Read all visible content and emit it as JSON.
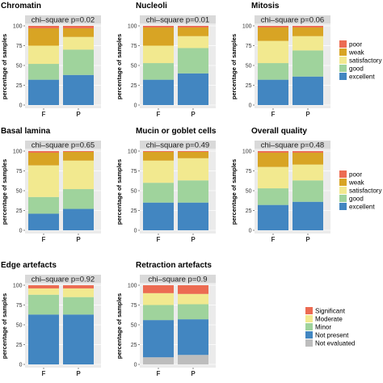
{
  "colors": {
    "poor": "#ec6b52",
    "weak": "#d8a424",
    "satisfactory": "#f2e98f",
    "good": "#9fd39c",
    "excellent": "#4286c1",
    "significant": "#ec6b52",
    "moderate": "#f2e98f",
    "minor": "#9fd39c",
    "not_present": "#4286c1",
    "not_evaluated": "#bdbdbd",
    "panel_bg": "#ebebeb",
    "strip_bg": "#d9d9d9"
  },
  "legends": [
    {
      "entries": [
        {
          "label": "poor",
          "color_key": "poor"
        },
        {
          "label": "weak",
          "color_key": "weak"
        },
        {
          "label": "satisfactory",
          "color_key": "satisfactory"
        },
        {
          "label": "good",
          "color_key": "good"
        },
        {
          "label": "excellent",
          "color_key": "excellent"
        }
      ]
    },
    {
      "entries": [
        {
          "label": "poor",
          "color_key": "poor"
        },
        {
          "label": "weak",
          "color_key": "weak"
        },
        {
          "label": "satisfactory",
          "color_key": "satisfactory"
        },
        {
          "label": "good",
          "color_key": "good"
        },
        {
          "label": "excellent",
          "color_key": "excellent"
        }
      ]
    },
    {
      "entries": [
        {
          "label": "Significant",
          "color_key": "significant"
        },
        {
          "label": "Moderate",
          "color_key": "moderate"
        },
        {
          "label": "Minor",
          "color_key": "minor"
        },
        {
          "label": "Not present",
          "color_key": "not_present"
        },
        {
          "label": "Not evaluated",
          "color_key": "not_evaluated"
        }
      ]
    }
  ],
  "chart_data": [
    {
      "type": "bar",
      "stacked": true,
      "title": "Chromatin",
      "strip": "chi–square p=0.02",
      "ylabel": "percentage of samples",
      "ylim": [
        0,
        100
      ],
      "yticks": [
        "0",
        "25",
        "50",
        "75",
        "100"
      ],
      "categories": [
        "F",
        "P"
      ],
      "series": [
        {
          "color_key": "excellent",
          "values": [
            32,
            38
          ]
        },
        {
          "color_key": "good",
          "values": [
            20,
            32
          ]
        },
        {
          "color_key": "satisfactory",
          "values": [
            23,
            16
          ]
        },
        {
          "color_key": "weak",
          "values": [
            22,
            11
          ]
        },
        {
          "color_key": "poor",
          "values": [
            3,
            3
          ]
        }
      ]
    },
    {
      "type": "bar",
      "stacked": true,
      "title": "Nucleoli",
      "strip": "chi–square p=0.01",
      "ylabel": "percentage of samples",
      "ylim": [
        0,
        100
      ],
      "yticks": [
        "0",
        "25",
        "50",
        "75",
        "100"
      ],
      "categories": [
        "F",
        "P"
      ],
      "series": [
        {
          "color_key": "excellent",
          "values": [
            32,
            40
          ]
        },
        {
          "color_key": "good",
          "values": [
            21,
            32
          ]
        },
        {
          "color_key": "satisfactory",
          "values": [
            22,
            15
          ]
        },
        {
          "color_key": "weak",
          "values": [
            23,
            11
          ]
        },
        {
          "color_key": "poor",
          "values": [
            2,
            2
          ]
        }
      ]
    },
    {
      "type": "bar",
      "stacked": true,
      "title": "Mitosis",
      "strip": "chi–square p=0.06",
      "ylabel": "percentage of samples",
      "ylim": [
        0,
        100
      ],
      "yticks": [
        "0",
        "25",
        "50",
        "75",
        "100"
      ],
      "categories": [
        "F",
        "P"
      ],
      "series": [
        {
          "color_key": "excellent",
          "values": [
            32,
            36
          ]
        },
        {
          "color_key": "good",
          "values": [
            21,
            33
          ]
        },
        {
          "color_key": "satisfactory",
          "values": [
            28,
            18
          ]
        },
        {
          "color_key": "weak",
          "values": [
            17,
            11
          ]
        },
        {
          "color_key": "poor",
          "values": [
            2,
            2
          ]
        }
      ]
    },
    {
      "type": "bar",
      "stacked": true,
      "title": "Basal lamina",
      "strip": "chi–square p=0.65",
      "ylabel": "percentage of samples",
      "ylim": [
        0,
        100
      ],
      "yticks": [
        "0",
        "25",
        "50",
        "75",
        "100"
      ],
      "categories": [
        "F",
        "P"
      ],
      "series": [
        {
          "color_key": "excellent",
          "values": [
            21,
            27
          ]
        },
        {
          "color_key": "good",
          "values": [
            21,
            25
          ]
        },
        {
          "color_key": "satisfactory",
          "values": [
            40,
            36
          ]
        },
        {
          "color_key": "weak",
          "values": [
            16,
            11
          ]
        },
        {
          "color_key": "poor",
          "values": [
            2,
            1
          ]
        }
      ]
    },
    {
      "type": "bar",
      "stacked": true,
      "title": "Mucin or goblet cells",
      "strip": "chi–square p=0.49",
      "ylabel": "percentage of samples",
      "ylim": [
        0,
        100
      ],
      "yticks": [
        "0",
        "25",
        "50",
        "75",
        "100"
      ],
      "categories": [
        "F",
        "P"
      ],
      "series": [
        {
          "color_key": "excellent",
          "values": [
            35,
            35
          ]
        },
        {
          "color_key": "good",
          "values": [
            25,
            28
          ]
        },
        {
          "color_key": "satisfactory",
          "values": [
            28,
            28
          ]
        },
        {
          "color_key": "weak",
          "values": [
            11,
            8
          ]
        },
        {
          "color_key": "poor",
          "values": [
            1,
            1
          ]
        }
      ]
    },
    {
      "type": "bar",
      "stacked": true,
      "title": "Overall quality",
      "strip": "chi–square p=0.48",
      "ylabel": "percentage of samples",
      "ylim": [
        0,
        100
      ],
      "yticks": [
        "0",
        "25",
        "50",
        "75",
        "100"
      ],
      "categories": [
        "F",
        "P"
      ],
      "series": [
        {
          "color_key": "excellent",
          "values": [
            32,
            36
          ]
        },
        {
          "color_key": "good",
          "values": [
            21,
            27
          ]
        },
        {
          "color_key": "satisfactory",
          "values": [
            27,
            20
          ]
        },
        {
          "color_key": "weak",
          "values": [
            18,
            15
          ]
        },
        {
          "color_key": "poor",
          "values": [
            2,
            2
          ]
        }
      ]
    },
    {
      "type": "bar",
      "stacked": true,
      "title": "Edge artefacts",
      "strip": "chi–square p=0.92",
      "ylabel": "percentage of samples",
      "ylim": [
        0,
        100
      ],
      "yticks": [
        "0",
        "25",
        "50",
        "75",
        "100"
      ],
      "categories": [
        "F",
        "P"
      ],
      "series": [
        {
          "color_key": "not_present",
          "values": [
            63,
            63
          ]
        },
        {
          "color_key": "minor",
          "values": [
            25,
            22
          ]
        },
        {
          "color_key": "moderate",
          "values": [
            8,
            11
          ]
        },
        {
          "color_key": "significant",
          "values": [
            4,
            4
          ]
        }
      ]
    },
    {
      "type": "bar",
      "stacked": true,
      "title": "Retraction artefacts",
      "strip": "chi–square p=0.9",
      "ylabel": "percentage of samples",
      "ylim": [
        0,
        100
      ],
      "yticks": [
        "0",
        "25",
        "50",
        "75",
        "100"
      ],
      "categories": [
        "F",
        "P"
      ],
      "series": [
        {
          "color_key": "not_evaluated",
          "values": [
            9,
            12
          ]
        },
        {
          "color_key": "not_present",
          "values": [
            47,
            45
          ]
        },
        {
          "color_key": "minor",
          "values": [
            19,
            19
          ]
        },
        {
          "color_key": "moderate",
          "values": [
            15,
            13
          ]
        },
        {
          "color_key": "significant",
          "values": [
            10,
            11
          ]
        }
      ]
    }
  ]
}
